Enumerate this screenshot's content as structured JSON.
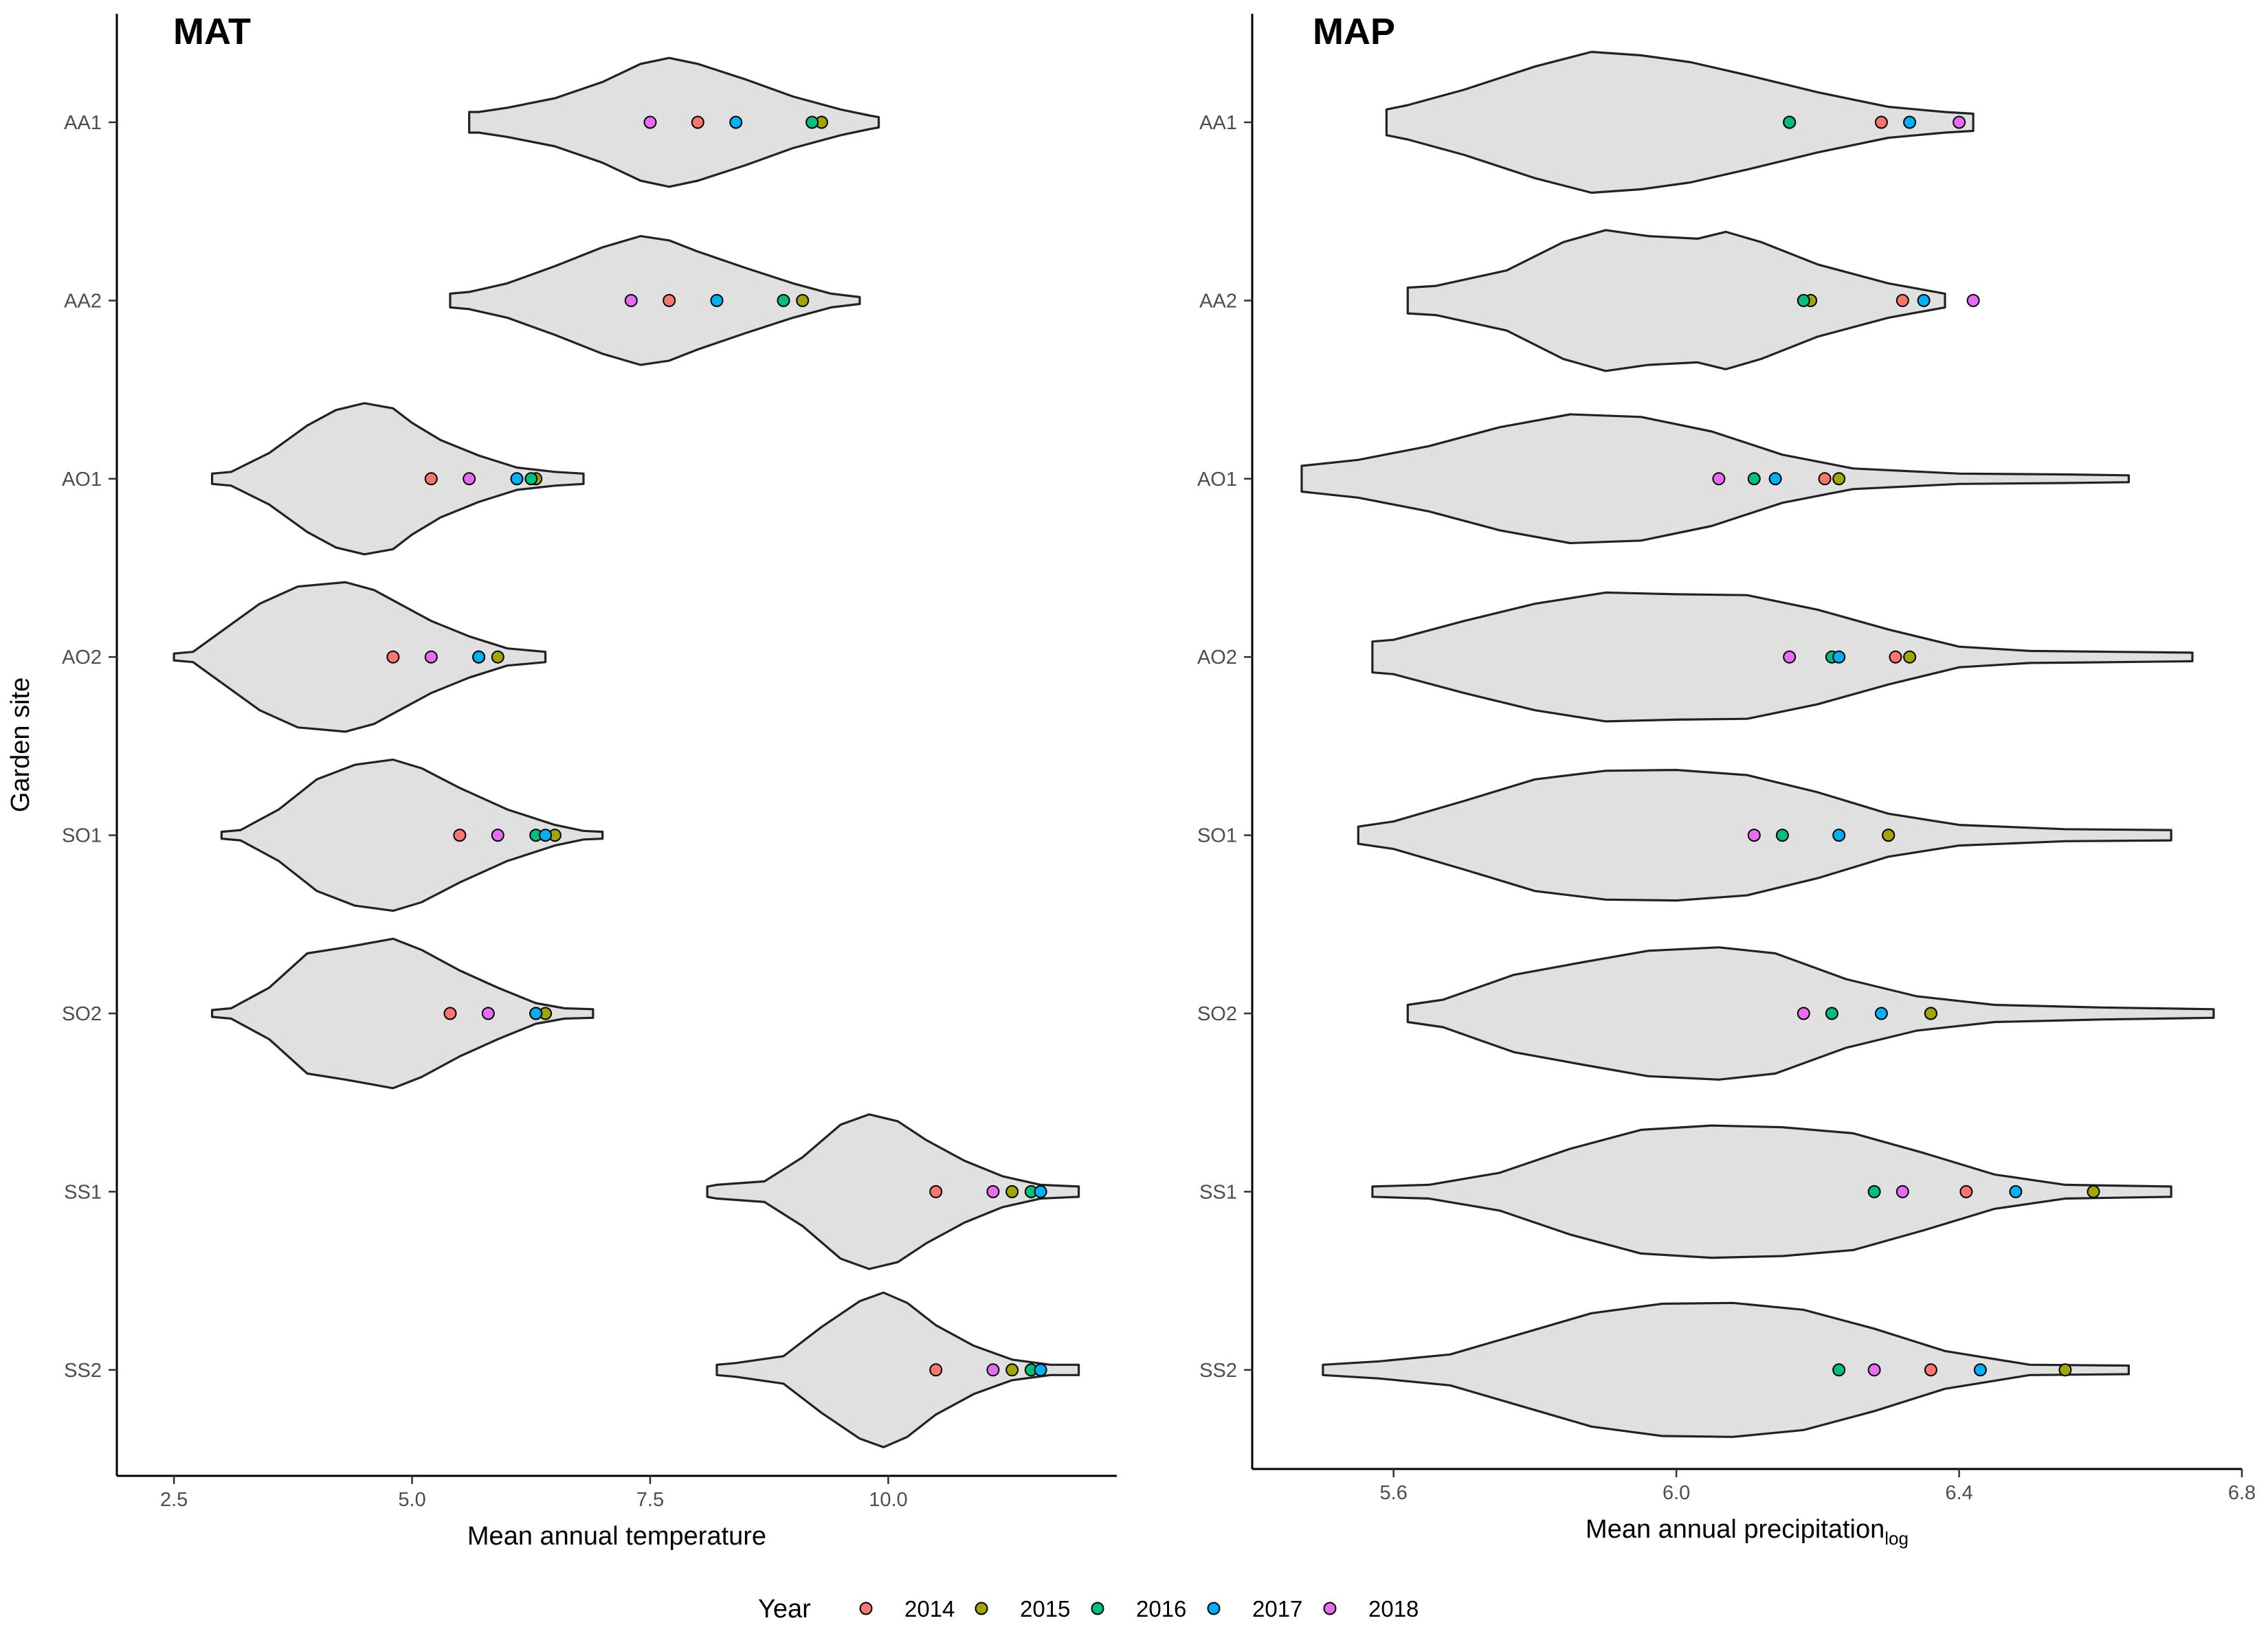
{
  "chart_data": [
    {
      "type": "violin",
      "title": "MAT",
      "xlabel": "Mean annual temperature",
      "ylabel": "Garden site",
      "xlim": [
        1.9,
        12.4
      ],
      "x_ticks": [
        2.5,
        5.0,
        7.5,
        10.0
      ],
      "x_tick_labels": [
        "2.5",
        "5.0",
        "7.5",
        "10.0"
      ],
      "categories": [
        "AA1",
        "AA2",
        "AO1",
        "AO2",
        "SO1",
        "SO2",
        "SS1",
        "SS2"
      ],
      "violins": [
        {
          "site": "AA1",
          "min": 5.6,
          "max": 9.9,
          "profile": [
            [
              5.6,
              0.12
            ],
            [
              5.7,
              0.12
            ],
            [
              6.0,
              0.17
            ],
            [
              6.5,
              0.28
            ],
            [
              7.0,
              0.47
            ],
            [
              7.4,
              0.68
            ],
            [
              7.7,
              0.75
            ],
            [
              8.0,
              0.68
            ],
            [
              8.5,
              0.5
            ],
            [
              9.0,
              0.3
            ],
            [
              9.5,
              0.15
            ],
            [
              9.8,
              0.08
            ],
            [
              9.9,
              0.06
            ]
          ]
        },
        {
          "site": "AA2",
          "min": 5.4,
          "max": 9.7,
          "profile": [
            [
              5.4,
              0.08
            ],
            [
              5.6,
              0.1
            ],
            [
              6.0,
              0.2
            ],
            [
              6.5,
              0.4
            ],
            [
              7.0,
              0.62
            ],
            [
              7.4,
              0.75
            ],
            [
              7.7,
              0.7
            ],
            [
              8.0,
              0.57
            ],
            [
              8.5,
              0.38
            ],
            [
              9.0,
              0.2
            ],
            [
              9.4,
              0.08
            ],
            [
              9.7,
              0.04
            ]
          ]
        },
        {
          "site": "AO1",
          "min": 2.9,
          "max": 6.8,
          "profile": [
            [
              2.9,
              0.06
            ],
            [
              3.1,
              0.08
            ],
            [
              3.5,
              0.3
            ],
            [
              3.9,
              0.62
            ],
            [
              4.2,
              0.8
            ],
            [
              4.5,
              0.88
            ],
            [
              4.8,
              0.82
            ],
            [
              5.0,
              0.65
            ],
            [
              5.3,
              0.45
            ],
            [
              5.7,
              0.27
            ],
            [
              6.1,
              0.13
            ],
            [
              6.5,
              0.08
            ],
            [
              6.8,
              0.06
            ]
          ]
        },
        {
          "site": "AO2",
          "min": 2.5,
          "max": 6.4,
          "profile": [
            [
              2.5,
              0.04
            ],
            [
              2.7,
              0.06
            ],
            [
              3.0,
              0.3
            ],
            [
              3.4,
              0.62
            ],
            [
              3.8,
              0.82
            ],
            [
              4.3,
              0.87
            ],
            [
              4.6,
              0.78
            ],
            [
              4.9,
              0.6
            ],
            [
              5.2,
              0.42
            ],
            [
              5.6,
              0.24
            ],
            [
              6.0,
              0.1
            ],
            [
              6.4,
              0.06
            ]
          ]
        },
        {
          "site": "SO1",
          "min": 3.0,
          "max": 7.0,
          "profile": [
            [
              3.0,
              0.04
            ],
            [
              3.2,
              0.06
            ],
            [
              3.6,
              0.3
            ],
            [
              4.0,
              0.65
            ],
            [
              4.4,
              0.82
            ],
            [
              4.8,
              0.88
            ],
            [
              5.1,
              0.78
            ],
            [
              5.5,
              0.55
            ],
            [
              6.0,
              0.3
            ],
            [
              6.5,
              0.12
            ],
            [
              6.8,
              0.05
            ],
            [
              7.0,
              0.04
            ]
          ]
        },
        {
          "site": "SO2",
          "min": 2.9,
          "max": 6.9,
          "profile": [
            [
              2.9,
              0.04
            ],
            [
              3.1,
              0.06
            ],
            [
              3.5,
              0.3
            ],
            [
              3.9,
              0.7
            ],
            [
              4.3,
              0.77
            ],
            [
              4.8,
              0.87
            ],
            [
              5.1,
              0.74
            ],
            [
              5.5,
              0.5
            ],
            [
              5.9,
              0.3
            ],
            [
              6.3,
              0.12
            ],
            [
              6.6,
              0.06
            ],
            [
              6.9,
              0.05
            ]
          ]
        },
        {
          "site": "SS1",
          "min": 8.1,
          "max": 12.0,
          "profile": [
            [
              8.1,
              0.06
            ],
            [
              8.2,
              0.08
            ],
            [
              8.7,
              0.12
            ],
            [
              9.1,
              0.4
            ],
            [
              9.5,
              0.78
            ],
            [
              9.8,
              0.9
            ],
            [
              10.1,
              0.82
            ],
            [
              10.4,
              0.6
            ],
            [
              10.8,
              0.36
            ],
            [
              11.2,
              0.18
            ],
            [
              11.6,
              0.08
            ],
            [
              12.0,
              0.06
            ]
          ]
        },
        {
          "site": "SS2",
          "min": 8.2,
          "max": 12.0,
          "profile": [
            [
              8.2,
              0.06
            ],
            [
              8.4,
              0.08
            ],
            [
              8.9,
              0.16
            ],
            [
              9.3,
              0.5
            ],
            [
              9.7,
              0.8
            ],
            [
              9.95,
              0.9
            ],
            [
              10.2,
              0.78
            ],
            [
              10.5,
              0.52
            ],
            [
              10.9,
              0.28
            ],
            [
              11.3,
              0.12
            ],
            [
              11.7,
              0.06
            ],
            [
              12.0,
              0.06
            ]
          ]
        }
      ],
      "series": [
        {
          "name": "2014",
          "values": [
            8.0,
            7.7,
            5.2,
            4.8,
            5.5,
            5.4,
            10.5,
            10.5
          ]
        },
        {
          "name": "2015",
          "values": [
            9.3,
            9.1,
            6.3,
            5.9,
            6.5,
            6.4,
            11.3,
            11.3
          ]
        },
        {
          "name": "2016",
          "values": [
            9.2,
            8.9,
            6.25,
            5.7,
            6.3,
            6.3,
            11.5,
            11.5
          ]
        },
        {
          "name": "2017",
          "values": [
            8.4,
            8.2,
            6.1,
            5.7,
            6.4,
            6.3,
            11.6,
            11.6
          ]
        },
        {
          "name": "2018",
          "values": [
            7.5,
            7.3,
            5.6,
            5.2,
            5.9,
            5.8,
            11.1,
            11.1
          ]
        }
      ]
    },
    {
      "type": "violin",
      "title": "MAP",
      "xlabel": "Mean annual precipitation",
      "xlabel_subscript": "log",
      "ylabel": "",
      "xlim": [
        5.4,
        6.8
      ],
      "x_ticks": [
        5.6,
        6.0,
        6.4,
        6.8
      ],
      "x_tick_labels": [
        "5.6",
        "6.0",
        "6.4",
        "6.8"
      ],
      "categories": [
        "AA1",
        "AA2",
        "AO1",
        "AO2",
        "SO1",
        "SO2",
        "SS1",
        "SS2"
      ],
      "violins": [
        {
          "site": "AA1",
          "min": 5.59,
          "max": 6.42,
          "profile": [
            [
              5.59,
              0.15
            ],
            [
              5.62,
              0.2
            ],
            [
              5.7,
              0.38
            ],
            [
              5.8,
              0.65
            ],
            [
              5.88,
              0.82
            ],
            [
              5.95,
              0.78
            ],
            [
              6.02,
              0.7
            ],
            [
              6.1,
              0.55
            ],
            [
              6.2,
              0.35
            ],
            [
              6.3,
              0.18
            ],
            [
              6.38,
              0.12
            ],
            [
              6.42,
              0.1
            ]
          ]
        },
        {
          "site": "AA2",
          "min": 5.62,
          "max": 6.38,
          "profile": [
            [
              5.62,
              0.15
            ],
            [
              5.66,
              0.17
            ],
            [
              5.76,
              0.35
            ],
            [
              5.84,
              0.68
            ],
            [
              5.9,
              0.82
            ],
            [
              5.96,
              0.75
            ],
            [
              6.03,
              0.72
            ],
            [
              6.07,
              0.8
            ],
            [
              6.12,
              0.68
            ],
            [
              6.2,
              0.42
            ],
            [
              6.3,
              0.2
            ],
            [
              6.38,
              0.08
            ]
          ]
        },
        {
          "site": "AO1",
          "min": 5.47,
          "max": 6.64,
          "profile": [
            [
              5.47,
              0.15
            ],
            [
              5.55,
              0.22
            ],
            [
              5.65,
              0.38
            ],
            [
              5.75,
              0.6
            ],
            [
              5.85,
              0.75
            ],
            [
              5.95,
              0.72
            ],
            [
              6.05,
              0.55
            ],
            [
              6.15,
              0.28
            ],
            [
              6.25,
              0.12
            ],
            [
              6.4,
              0.06
            ],
            [
              6.55,
              0.05
            ],
            [
              6.64,
              0.04
            ]
          ]
        },
        {
          "site": "AO2",
          "min": 5.57,
          "max": 6.73,
          "profile": [
            [
              5.57,
              0.18
            ],
            [
              5.6,
              0.2
            ],
            [
              5.7,
              0.42
            ],
            [
              5.8,
              0.62
            ],
            [
              5.9,
              0.75
            ],
            [
              6.0,
              0.73
            ],
            [
              6.1,
              0.72
            ],
            [
              6.2,
              0.55
            ],
            [
              6.3,
              0.32
            ],
            [
              6.4,
              0.12
            ],
            [
              6.5,
              0.07
            ],
            [
              6.62,
              0.06
            ],
            [
              6.73,
              0.05
            ]
          ]
        },
        {
          "site": "SO1",
          "min": 5.55,
          "max": 6.7,
          "profile": [
            [
              5.55,
              0.1
            ],
            [
              5.6,
              0.16
            ],
            [
              5.7,
              0.4
            ],
            [
              5.8,
              0.65
            ],
            [
              5.9,
              0.75
            ],
            [
              6.0,
              0.76
            ],
            [
              6.1,
              0.7
            ],
            [
              6.2,
              0.5
            ],
            [
              6.3,
              0.25
            ],
            [
              6.4,
              0.12
            ],
            [
              6.55,
              0.07
            ],
            [
              6.7,
              0.06
            ]
          ]
        },
        {
          "site": "SO2",
          "min": 5.62,
          "max": 6.76,
          "profile": [
            [
              5.62,
              0.1
            ],
            [
              5.67,
              0.16
            ],
            [
              5.77,
              0.45
            ],
            [
              5.87,
              0.6
            ],
            [
              5.96,
              0.73
            ],
            [
              6.06,
              0.77
            ],
            [
              6.14,
              0.7
            ],
            [
              6.24,
              0.4
            ],
            [
              6.34,
              0.2
            ],
            [
              6.45,
              0.1
            ],
            [
              6.6,
              0.07
            ],
            [
              6.76,
              0.05
            ]
          ]
        },
        {
          "site": "SS1",
          "min": 5.57,
          "max": 6.7,
          "profile": [
            [
              5.57,
              0.06
            ],
            [
              5.65,
              0.08
            ],
            [
              5.75,
              0.22
            ],
            [
              5.85,
              0.5
            ],
            [
              5.95,
              0.72
            ],
            [
              6.05,
              0.77
            ],
            [
              6.15,
              0.75
            ],
            [
              6.25,
              0.68
            ],
            [
              6.35,
              0.45
            ],
            [
              6.45,
              0.2
            ],
            [
              6.55,
              0.08
            ],
            [
              6.7,
              0.06
            ]
          ]
        },
        {
          "site": "SS2",
          "min": 5.5,
          "max": 6.64,
          "profile": [
            [
              5.5,
              0.06
            ],
            [
              5.58,
              0.1
            ],
            [
              5.68,
              0.18
            ],
            [
              5.78,
              0.42
            ],
            [
              5.88,
              0.66
            ],
            [
              5.98,
              0.77
            ],
            [
              6.08,
              0.78
            ],
            [
              6.18,
              0.7
            ],
            [
              6.28,
              0.48
            ],
            [
              6.38,
              0.22
            ],
            [
              6.5,
              0.06
            ],
            [
              6.64,
              0.05
            ]
          ]
        }
      ],
      "series": [
        {
          "name": "2014",
          "values": [
            6.29,
            6.32,
            6.21,
            6.31,
            6.3,
            6.36,
            6.41,
            6.36
          ]
        },
        {
          "name": "2015",
          "values": [
            6.16,
            6.19,
            6.23,
            6.33,
            6.3,
            6.36,
            6.59,
            6.55
          ]
        },
        {
          "name": "2016",
          "values": [
            6.16,
            6.18,
            6.11,
            6.22,
            6.15,
            6.22,
            6.28,
            6.23
          ]
        },
        {
          "name": "2017",
          "values": [
            6.33,
            6.35,
            6.14,
            6.23,
            6.23,
            6.29,
            6.48,
            6.43
          ]
        },
        {
          "name": "2018",
          "values": [
            6.4,
            6.42,
            6.06,
            6.16,
            6.11,
            6.18,
            6.32,
            6.28
          ]
        }
      ]
    }
  ],
  "legend": {
    "title": "Year",
    "position": "bottom",
    "entries": [
      "2014",
      "2015",
      "2016",
      "2017",
      "2018"
    ]
  },
  "colors": {
    "2014": "#F8766D",
    "2015": "#A3A500",
    "2016": "#00BF7D",
    "2017": "#00B0F6",
    "2018": "#E76BF3",
    "violin_fill": "#e0e0e0",
    "violin_stroke": "#222222"
  }
}
